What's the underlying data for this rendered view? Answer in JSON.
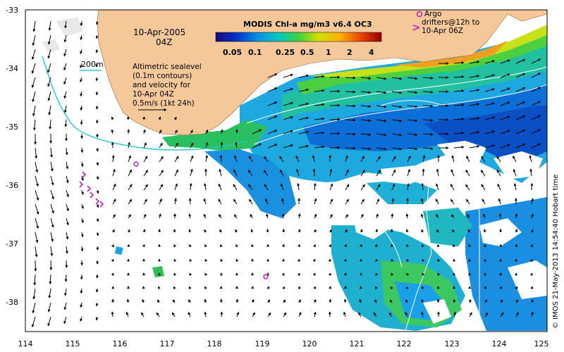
{
  "date_label": "10-Apr-2005",
  "time_label": "04Z",
  "colorbar": {
    "title": "MODIS Chl-a mg/m3 v6.4 OC3",
    "ticks": [
      "0.05",
      "0.1",
      "0.25",
      "0.5",
      "1",
      "2",
      "4"
    ],
    "colors": [
      "#1a0a7a",
      "#0030c8",
      "#0090e0",
      "#00c8c0",
      "#40d040",
      "#d0e000",
      "#ffb000",
      "#e84000",
      "#900000"
    ]
  },
  "legend": {
    "isobath": "200m",
    "sealevel_lines": [
      "Altimetric sealevel",
      "(0.1m contours)",
      "and velocity for",
      "10-Apr 04Z"
    ],
    "velocity_scale": "0.5m/s (1kt 24h)"
  },
  "argo": {
    "lines": [
      "Argo",
      "drifters@12h to",
      "10-Apr 06Z"
    ],
    "marker_symbol": ">"
  },
  "axes": {
    "x_ticks": [
      "114",
      "115",
      "116",
      "117",
      "118",
      "119",
      "120",
      "121",
      "122",
      "123",
      "124",
      "125"
    ],
    "y_ticks": [
      "-33",
      "-34",
      "-35",
      "-36",
      "-37",
      "-38"
    ]
  },
  "credit": "© IMOS 21-May-2013 14:54:40 Hobart time",
  "colors": {
    "land": "#f5c89a",
    "isobath": "#22c8d8",
    "argo": "#c81ec8",
    "contour": "#ffffff"
  }
}
